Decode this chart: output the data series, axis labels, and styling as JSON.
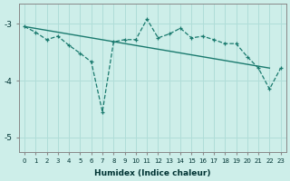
{
  "xlabel": "Humidex (Indice chaleur)",
  "bg_color": "#cdeee9",
  "line_color": "#1a7a6e",
  "grid_color": "#b0ddd8",
  "xlim": [
    -0.5,
    23.5
  ],
  "ylim": [
    -5.25,
    -2.65
  ],
  "yticks": [
    -5,
    -4,
    -3
  ],
  "xticks": [
    0,
    1,
    2,
    3,
    4,
    5,
    6,
    7,
    8,
    9,
    10,
    11,
    12,
    13,
    14,
    15,
    16,
    17,
    18,
    19,
    20,
    21,
    22,
    23
  ],
  "line1_x": [
    0,
    1,
    2,
    3,
    4,
    5,
    6,
    7,
    8,
    9,
    10,
    11,
    12,
    13,
    14,
    15,
    16,
    17,
    18,
    19,
    20,
    21,
    22,
    23
  ],
  "line1_y": [
    -3.05,
    -3.15,
    -3.28,
    -3.22,
    -3.38,
    -3.52,
    -3.67,
    -4.55,
    -3.32,
    -3.28,
    -3.28,
    -2.92,
    -3.25,
    -3.18,
    -3.08,
    -3.25,
    -3.22,
    -3.28,
    -3.35,
    -3.35,
    -3.58,
    -3.78,
    -4.15,
    -3.78
  ],
  "line2_x": [
    0,
    22
  ],
  "line2_y": [
    -3.05,
    -3.78
  ]
}
